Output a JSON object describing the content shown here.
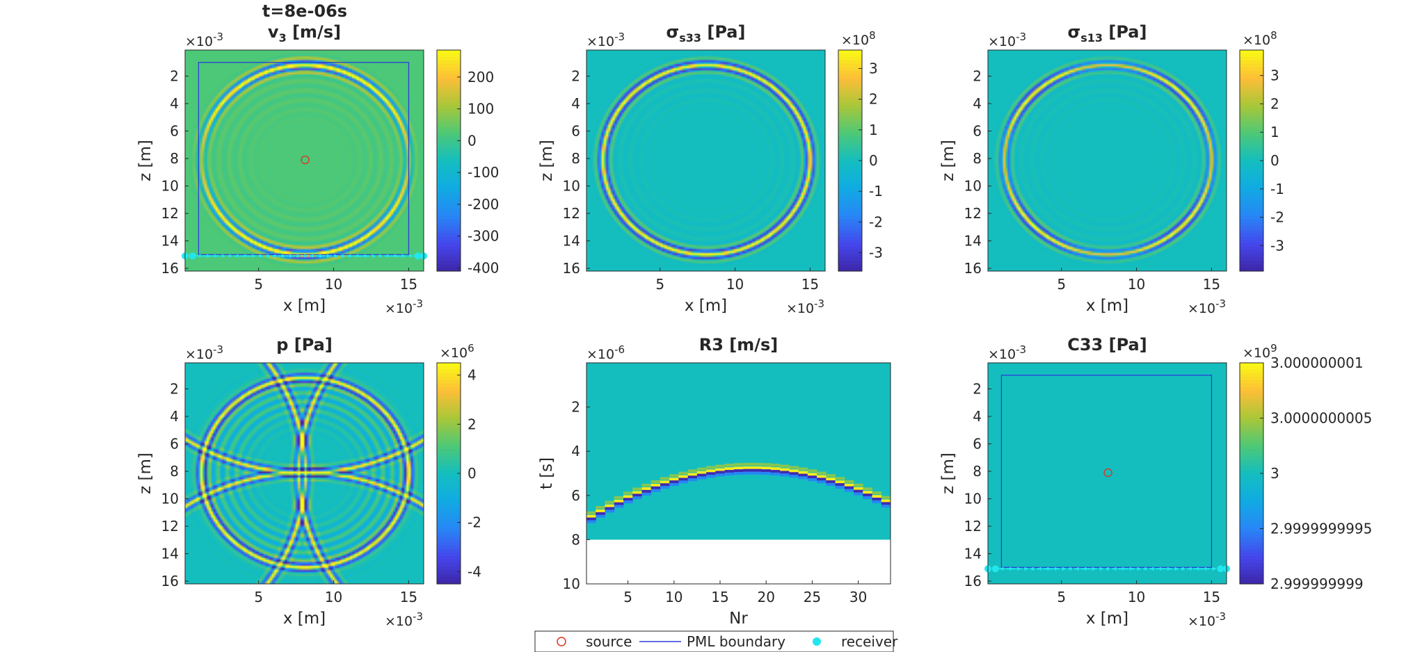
{
  "figure_title": "t=8e-06s",
  "chart_data": [
    {
      "type": "heatmap",
      "title": "v",
      "title_sub": "3",
      "title_suffix": " [m/s]",
      "xlabel": "x [m]",
      "ylabel": "z [m]",
      "x_exponent": "×10",
      "x_exponent_power": "-3",
      "y_exponent": "×10",
      "y_exponent_power": "-3",
      "xlim": [
        0.1,
        16
      ],
      "ylim": [
        0.1,
        16.2
      ],
      "xticks": [
        5,
        10,
        15
      ],
      "yticks": [
        2,
        4,
        6,
        8,
        10,
        12,
        14,
        16
      ],
      "colorbar_ticks": [
        "200",
        "100",
        "0",
        "-100",
        "-200",
        "-300",
        "-400"
      ],
      "colorbar_values": [
        200,
        100,
        0,
        -100,
        -200,
        -300,
        -400
      ],
      "clim": [
        -410,
        285
      ],
      "colorbar_exponent": "",
      "field": "v3",
      "background_level": 0.5,
      "source": [
        8.1,
        8.1
      ],
      "pml_box": [
        1.0,
        1.0,
        15.0,
        15.0
      ],
      "receivers_z": 15.1
    },
    {
      "type": "heatmap",
      "title": "σ",
      "title_sub": "s33",
      "title_suffix": " [Pa]",
      "xlabel": "x [m]",
      "ylabel": "z [m]",
      "x_exponent": "×10",
      "x_exponent_power": "-3",
      "y_exponent": "×10",
      "y_exponent_power": "-3",
      "xlim": [
        0.1,
        16
      ],
      "ylim": [
        0.1,
        16.2
      ],
      "xticks": [
        5,
        10,
        15
      ],
      "yticks": [
        2,
        4,
        6,
        8,
        10,
        12,
        14,
        16
      ],
      "colorbar_ticks": [
        "3",
        "2",
        "1",
        "0",
        "-1",
        "-2",
        "-3"
      ],
      "colorbar_values": [
        3,
        2,
        1,
        0,
        -1,
        -2,
        -3
      ],
      "clim": [
        -3.6,
        3.6
      ],
      "colorbar_exponent": "×10",
      "colorbar_exponent_power": "8",
      "field": "s33"
    },
    {
      "type": "heatmap",
      "title": "σ",
      "title_sub": "s13",
      "title_suffix": " [Pa]",
      "xlabel": "x [m]",
      "ylabel": "z [m]",
      "x_exponent": "×10",
      "x_exponent_power": "-3",
      "y_exponent": "×10",
      "y_exponent_power": "-3",
      "xlim": [
        0.1,
        16
      ],
      "ylim": [
        0.1,
        16.2
      ],
      "xticks": [
        5,
        10,
        15
      ],
      "yticks": [
        2,
        4,
        6,
        8,
        10,
        12,
        14,
        16
      ],
      "colorbar_ticks": [
        "3",
        "2",
        "1",
        "0",
        "-1",
        "-2",
        "-3"
      ],
      "colorbar_values": [
        3,
        2,
        1,
        0,
        -1,
        -2,
        -3
      ],
      "clim": [
        -3.9,
        3.9
      ],
      "colorbar_exponent": "×10",
      "colorbar_exponent_power": "8",
      "field": "s13"
    },
    {
      "type": "heatmap",
      "title": "p [Pa]",
      "xlabel": "x [m]",
      "ylabel": "z [m]",
      "x_exponent": "×10",
      "x_exponent_power": "-3",
      "y_exponent": "×10",
      "y_exponent_power": "-3",
      "xlim": [
        0.1,
        16
      ],
      "ylim": [
        0.1,
        16.2
      ],
      "xticks": [
        5,
        10,
        15
      ],
      "yticks": [
        2,
        4,
        6,
        8,
        10,
        12,
        14,
        16
      ],
      "colorbar_ticks": [
        "4",
        "2",
        "0",
        "-2",
        "-4"
      ],
      "colorbar_values": [
        4,
        2,
        0,
        -2,
        -4
      ],
      "clim": [
        -4.5,
        4.5
      ],
      "colorbar_exponent": "×10",
      "colorbar_exponent_power": "6",
      "field": "p"
    },
    {
      "type": "heatmap",
      "title": "R3 [m/s]",
      "xlabel": "Nr",
      "ylabel": "t [s]",
      "y_exponent": "×10",
      "y_exponent_power": "-6",
      "xlim": [
        0.5,
        33.5
      ],
      "ylim": [
        0,
        10
      ],
      "xticks": [
        5,
        10,
        15,
        20,
        25,
        30
      ],
      "yticks": [
        2,
        4,
        6,
        8,
        10
      ],
      "t_recorded_end": 8,
      "arrival_peak": {
        "receiver": 18.5,
        "t": 4.8
      },
      "arrival_left_end": {
        "receiver": 1,
        "t": 7.0
      },
      "arrival_right_end": {
        "receiver": 33,
        "t": 6.3
      },
      "field": "R3"
    },
    {
      "type": "heatmap",
      "title": "C33 [Pa]",
      "xlabel": "x [m]",
      "ylabel": "z [m]",
      "x_exponent": "×10",
      "x_exponent_power": "-3",
      "y_exponent": "×10",
      "y_exponent_power": "-3",
      "xlim": [
        0.1,
        16
      ],
      "ylim": [
        0.1,
        16.2
      ],
      "xticks": [
        5,
        10,
        15
      ],
      "yticks": [
        2,
        4,
        6,
        8,
        10,
        12,
        14,
        16
      ],
      "colorbar_ticks": [
        "3.000000001",
        "3.0000000005",
        "3",
        "2.9999999995",
        "2.999999999"
      ],
      "colorbar_values": [
        1,
        0.5,
        0,
        -0.5,
        -1
      ],
      "clim": [
        -1,
        1
      ],
      "colorbar_exponent": "×10",
      "colorbar_exponent_power": "9",
      "field": "C33",
      "background_level": 0.5,
      "source": [
        8.1,
        8.1
      ],
      "pml_box": [
        1.0,
        1.0,
        15.0,
        15.0
      ],
      "receivers_z": 15.1
    }
  ],
  "legend": {
    "position": "bottom-center",
    "items": [
      {
        "label": "source",
        "marker": "red-circle",
        "color": "#e0301e"
      },
      {
        "label": "PML boundary",
        "marker": "blue-line",
        "color": "#2a3fd6"
      },
      {
        "label": "receiver",
        "marker": "cyan-dot",
        "color": "#22e6ee"
      }
    ]
  },
  "colormap": "parula",
  "colors": {
    "source": "#e0301e",
    "pml": "#2a3fd6",
    "receiver": "#22e6ee"
  }
}
